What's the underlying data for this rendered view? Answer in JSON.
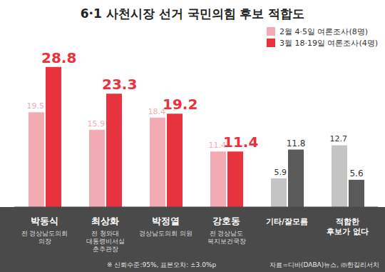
{
  "chart_data": {
    "type": "bar",
    "title": "6·1 사천시장 선거 국민의힘 후보 적합도",
    "categories": [
      "박동식",
      "최상화",
      "박정열",
      "강호동",
      "기타/잘모름",
      "적합한 후보가 없다"
    ],
    "category_descriptions": [
      "전 경상남도의회 의장",
      "전 청와대 대통령비서실 춘추관장",
      "경상남도의회 의원",
      "전 경상남도 복지보건국장",
      null,
      null
    ],
    "series": [
      {
        "name": "2월 4·5일 여론조사(8명)",
        "color": "#f2aab3",
        "colors": [
          "#f2aab3",
          "#f2aab3",
          "#f2aab3",
          "#f2aab3",
          "#c4c4c4",
          "#c4c4c4"
        ],
        "values": [
          19.5,
          15.9,
          18.4,
          11.4,
          5.9,
          12.7
        ]
      },
      {
        "name": "3월 18·19일 여론조사(4명)",
        "color": "#e8333f",
        "colors": [
          "#e8333f",
          "#e8333f",
          "#e8333f",
          "#e8333f",
          "#5a5a5a",
          "#5a5a5a"
        ],
        "values": [
          28.8,
          23.3,
          19.2,
          11.4,
          11.8,
          5.6
        ]
      }
    ],
    "ylim": [
      0,
      32
    ],
    "legend": "top-right",
    "data_labels": true,
    "tick_labels": "x",
    "notes": [
      "※ 신뢰수준:95%, 표본오차: ±3.0%p"
    ],
    "source": "자료=디바(DABA)뉴스, ㈜한길리서치"
  }
}
